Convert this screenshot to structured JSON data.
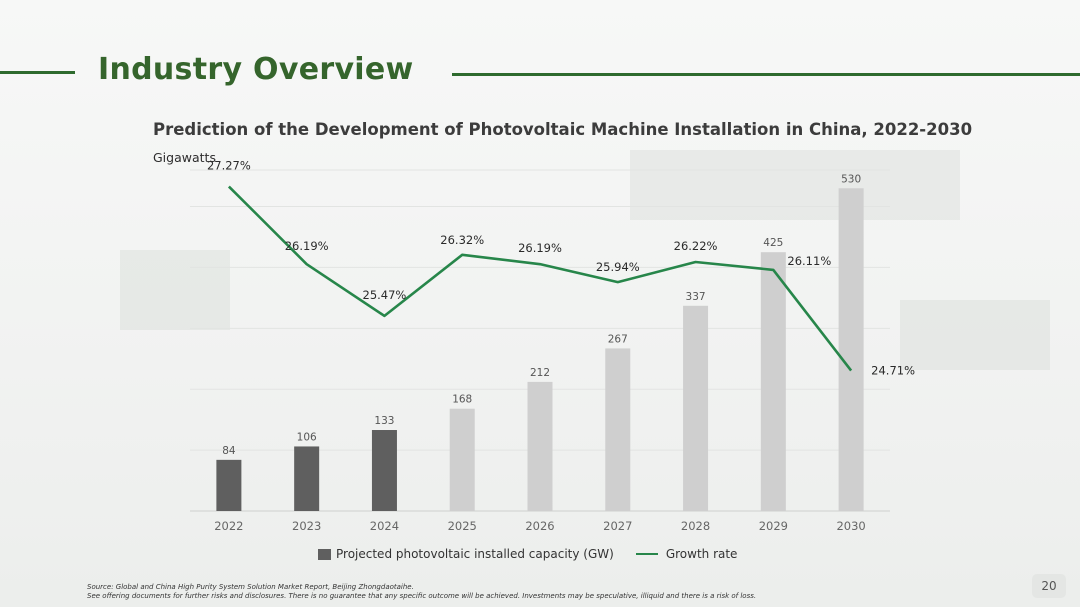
{
  "page": {
    "title": "Industry Overview",
    "page_number": "20"
  },
  "chart_data": {
    "type": "bar",
    "title": "Prediction of the Development of Photovoltaic Machine Installation in China, 2022-2030",
    "ylabel": "Gigawatts",
    "xlabel": "",
    "categories": [
      "2022",
      "2023",
      "2024",
      "2025",
      "2026",
      "2027",
      "2028",
      "2029",
      "2030"
    ],
    "series": [
      {
        "name": "Projected photovoltaic installed capacity (GW)",
        "type": "bar",
        "values": [
          84,
          106,
          133,
          168,
          212,
          267,
          337,
          425,
          530
        ],
        "colors": [
          "#5f5f5f",
          "#5f5f5f",
          "#5f5f5f",
          "#cfcfcf",
          "#cfcfcf",
          "#cfcfcf",
          "#cfcfcf",
          "#cfcfcf",
          "#cfcfcf"
        ]
      },
      {
        "name": "Growth rate",
        "type": "line",
        "values": [
          27.27,
          26.19,
          25.47,
          26.32,
          26.19,
          25.94,
          26.22,
          26.11,
          24.71
        ],
        "labels": [
          "27.27%",
          "26.19%",
          "25.47%",
          "26.32%",
          "26.19%",
          "25.94%",
          "26.22%",
          "26.11%",
          "24.71%"
        ],
        "color": "#27864a"
      }
    ],
    "bar_ylim": [
      0,
      560
    ],
    "line_ylim": [
      24.3,
      27.5
    ],
    "grid": true,
    "legend_position": "bottom"
  },
  "footer": {
    "source": "Source: Global and China High Purity System Solution Market Report, Beijing Zhongdaotaihe.",
    "disclaimer": "See offering documents for further risks and disclosures. There is no guarantee that any specific outcome will be achieved. Investments may be speculative, illiquid and there is a risk of loss."
  }
}
